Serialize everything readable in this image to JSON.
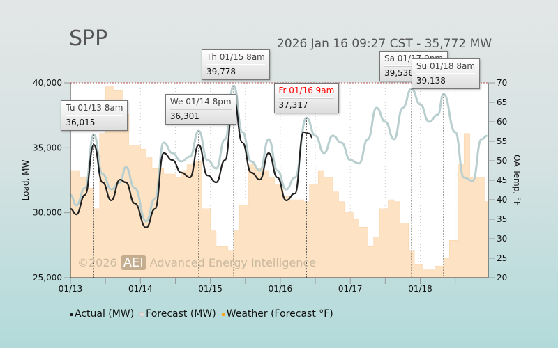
{
  "header": {
    "title": "SPP",
    "subtitle": "2026 Jan 16 09:27 CST - 35,772 MW"
  },
  "watermark": {
    "copyright": "©2026",
    "logo": "AEI",
    "company": "Advanced Energy Intelligence"
  },
  "legend": [
    {
      "label": "Actual (MW)",
      "color": "#222222"
    },
    {
      "label": "Forecast (MW)",
      "color": "#dddddd"
    },
    {
      "label": "Weather (Forecast °F)",
      "color": "#f5a623"
    }
  ],
  "tooltips": [
    {
      "date": "Tu 01/13 8am",
      "value": "36,015",
      "hour": 8,
      "red": false
    },
    {
      "date": "We 01/14 8pm",
      "value": "36,301",
      "hour": 44,
      "red": false
    },
    {
      "date": "Th 01/15 8am",
      "value": "39,778",
      "hour": 56,
      "red": false
    },
    {
      "date": "Fr 01/16 9am",
      "value": "37,317",
      "hour": 81,
      "red": true
    },
    {
      "date": "Sa 01/17 9pm",
      "value": "39,536",
      "hour": 117,
      "red": false
    },
    {
      "date": "Su 01/18 8am",
      "value": "39,138",
      "hour": 128,
      "red": false
    }
  ],
  "chart_data": {
    "type": "line",
    "x_unit": "hours since 01/13 00:00",
    "xlim": [
      0,
      144
    ],
    "x_ticks": [
      {
        "hour": 0,
        "label": "01/13"
      },
      {
        "hour": 24,
        "label": "01/14"
      },
      {
        "hour": 48,
        "label": "01/15"
      },
      {
        "hour": 72,
        "label": "01/16"
      },
      {
        "hour": 96,
        "label": "01/17"
      },
      {
        "hour": 120,
        "label": "01/18"
      }
    ],
    "ylabel": "Load, MW",
    "ylim": [
      25000,
      40000
    ],
    "y_ticks": [
      "25,000",
      "30,000",
      "35,000",
      "40,000"
    ],
    "y_tick_values": [
      25000,
      30000,
      35000,
      40000
    ],
    "y2label": "OA Temp, °F",
    "y2lim": [
      20,
      70
    ],
    "y2_ticks": [
      20,
      25,
      30,
      35,
      40,
      45,
      50,
      55,
      60,
      65,
      70
    ],
    "series": [
      {
        "name": "Forecast (MW)",
        "color": "#b9cfcf",
        "points": [
          [
            0,
            31375
          ],
          [
            2,
            30570
          ],
          [
            5,
            31910
          ],
          [
            8,
            36015
          ],
          [
            11,
            32980
          ],
          [
            14,
            31800
          ],
          [
            17,
            32340
          ],
          [
            19,
            33520
          ],
          [
            22,
            31910
          ],
          [
            26,
            29340
          ],
          [
            29,
            31110
          ],
          [
            32,
            35390
          ],
          [
            35,
            34590
          ],
          [
            38,
            33950
          ],
          [
            41,
            34320
          ],
          [
            44,
            36301
          ],
          [
            47,
            34050
          ],
          [
            50,
            33410
          ],
          [
            53,
            35660
          ],
          [
            56,
            39778
          ],
          [
            59,
            36200
          ],
          [
            62,
            33950
          ],
          [
            65,
            33250
          ],
          [
            68,
            35660
          ],
          [
            71,
            33250
          ],
          [
            74,
            31800
          ],
          [
            77,
            32710
          ],
          [
            81,
            37317
          ],
          [
            84,
            35930
          ],
          [
            87,
            34590
          ],
          [
            90,
            35930
          ],
          [
            93,
            35390
          ],
          [
            96,
            34050
          ],
          [
            99,
            33790
          ],
          [
            102,
            35660
          ],
          [
            105,
            38070
          ],
          [
            108,
            37000
          ],
          [
            111,
            35660
          ],
          [
            114,
            38070
          ],
          [
            117,
            39536
          ],
          [
            120,
            38340
          ],
          [
            123,
            37000
          ],
          [
            126,
            37540
          ],
          [
            128,
            39138
          ],
          [
            132,
            36200
          ],
          [
            135,
            32710
          ],
          [
            138,
            32450
          ],
          [
            141,
            35660
          ],
          [
            143,
            35930
          ]
        ]
      },
      {
        "name": "Actual (MW)",
        "color": "#222222",
        "points": [
          [
            0,
            30300
          ],
          [
            2,
            29870
          ],
          [
            5,
            31375
          ],
          [
            8,
            35230
          ],
          [
            11,
            32340
          ],
          [
            14,
            30950
          ],
          [
            17,
            32550
          ],
          [
            19,
            32340
          ],
          [
            22,
            30730
          ],
          [
            26,
            28860
          ],
          [
            29,
            30300
          ],
          [
            32,
            34590
          ],
          [
            35,
            34050
          ],
          [
            38,
            33090
          ],
          [
            41,
            32710
          ],
          [
            44,
            35230
          ],
          [
            47,
            32870
          ],
          [
            50,
            32340
          ],
          [
            53,
            34050
          ],
          [
            56,
            38710
          ],
          [
            59,
            35390
          ],
          [
            62,
            33090
          ],
          [
            65,
            32550
          ],
          [
            68,
            34590
          ],
          [
            71,
            32710
          ],
          [
            74,
            30950
          ],
          [
            77,
            31480
          ],
          [
            80,
            36200
          ],
          [
            82,
            36090
          ],
          [
            83,
            35772
          ]
        ]
      },
      {
        "name": "Weather (Forecast °F)",
        "axis": "y2",
        "color": "#fde3c3",
        "points": [
          [
            0,
            47.5
          ],
          [
            3,
            45.7
          ],
          [
            6,
            43
          ],
          [
            8,
            37.7
          ],
          [
            10,
            57
          ],
          [
            12,
            69
          ],
          [
            15,
            68
          ],
          [
            18,
            62
          ],
          [
            20,
            54
          ],
          [
            24,
            53
          ],
          [
            26,
            51
          ],
          [
            28,
            48
          ],
          [
            32,
            46.6
          ],
          [
            36,
            45.7
          ],
          [
            38,
            47.5
          ],
          [
            40,
            49
          ],
          [
            43,
            50
          ],
          [
            45,
            37.7
          ],
          [
            48,
            32
          ],
          [
            50,
            28
          ],
          [
            54,
            27
          ],
          [
            56,
            32
          ],
          [
            58,
            38.6
          ],
          [
            61,
            49
          ],
          [
            63,
            48
          ],
          [
            66,
            47.5
          ],
          [
            68,
            45.7
          ],
          [
            70,
            44
          ],
          [
            73,
            41
          ],
          [
            75,
            40
          ],
          [
            78,
            40
          ],
          [
            80,
            39.5
          ],
          [
            82,
            44
          ],
          [
            85,
            47.5
          ],
          [
            87,
            45.7
          ],
          [
            90,
            42
          ],
          [
            92,
            39.5
          ],
          [
            94,
            36.8
          ],
          [
            97,
            35
          ],
          [
            99,
            33
          ],
          [
            102,
            28
          ],
          [
            104,
            30.5
          ],
          [
            106,
            37.7
          ],
          [
            109,
            40
          ],
          [
            111,
            39.5
          ],
          [
            113,
            34
          ],
          [
            116,
            27
          ],
          [
            118,
            23.4
          ],
          [
            121,
            22
          ],
          [
            123,
            22
          ],
          [
            125,
            23
          ],
          [
            128,
            25
          ],
          [
            130,
            29.6
          ],
          [
            133,
            49
          ],
          [
            135,
            57
          ],
          [
            137,
            45.7
          ],
          [
            140,
            45.7
          ],
          [
            142,
            39.5
          ],
          [
            144,
            39.5
          ]
        ]
      }
    ]
  }
}
